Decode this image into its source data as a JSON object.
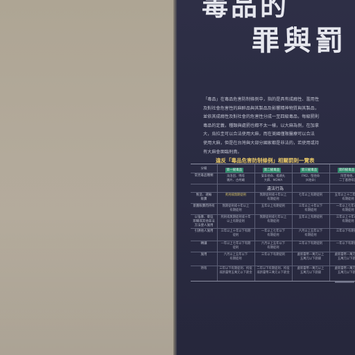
{
  "poster": {
    "title_line1": "毒品的",
    "title_line2": "罪與罰",
    "intro_text": "「毒品」在毒品危害防制條例中，指的是具有成癮性、濫用性\n及對社會危害性的麻醉品與其製品及影響精神物質與其製品，\n並依其成癮性及對社會的危害性分成一至四級毒品，每級罰則\n毒品的定義，種類與處罰也都不太一樣，以大麻為例，在加拿\n大，烏拉圭可以合法使用大麻，而在美國僅限醫療可以合法\n使用大麻，但是在台灣與大部分國家都是非法的，若使用或持\n有大麻會面臨刑責。",
    "table_title": "違反「毒品危害防制條例」相關罰則一覽表",
    "section_label": "違法行為",
    "grades": [
      "第一級毒品",
      "第二級毒品",
      "第三級毒品",
      "第四級毒品"
    ],
    "row_labels": [
      "分級",
      "常見毒品種類",
      "製造、運輸\n販賣",
      "意圖販賣而持有",
      "以強暴、脅迫\n欺瞞或其他非法\n方法使人施用",
      "引誘他人施用",
      "轉讓",
      "施用",
      "持有"
    ],
    "grade_examples": [
      "海洛因、嗎啡\n鴉片、古柯鹼",
      "安非他命、搖頭丸\n大麻、MDMA",
      "FM2、愷他命\n（K他命）",
      "阿普唑他、\n二丁基原啡因"
    ],
    "cells": [
      [
        "死刑或無期徒刑",
        "無期徒刑或十年以上\n有期徒刑",
        "七年以上有期徒刑",
        "五年以上十二年以下\n有期徒刑"
      ],
      [
        "無期徒刑或十年以上\n有期徒刑",
        "五年以上有期徒刑",
        "三年以上十年以下\n有期徒刑",
        "一年以上七年以下\n有期徒刑"
      ],
      [
        "死刑或無期徒刑或十年\n以上有期徒刑",
        "無期徒刑或七年以上\n有期徒刑",
        "五年以上有期徒刑",
        "三年以上十年以下\n有期徒刑"
      ],
      [
        "三年以上十年以下有期\n徒刑",
        "一年以上七年以下\n有期徒刑",
        "六月以上五年以下\n有期徒刑",
        "三年以下有期徒刑"
      ],
      [
        "一年以上七年以下有期\n徒刑",
        "六月以上五年以下\n有期徒刑",
        "三年以下有期徒刑",
        "一年以下有期徒刑"
      ],
      [
        "六月以上五年以下\n有期徒刑",
        "三年以下有期徒刑",
        "處新臺幣一萬元以上\n五萬元以下罰鍰",
        "處新臺幣一萬元以上\n五萬元以下罰鍰"
      ],
      [
        "三年以下有期徒刑、拘役\n或新臺幣五萬元以下罰金",
        "二年以下有期徒刑、拘役\n或新臺幣三萬元以下罰金",
        "處新臺幣一萬元以上\n五萬元以下罰鍰",
        "處新臺幣一萬元以上\n五萬元以下罰鍰"
      ]
    ]
  },
  "colors": {
    "wall": "#b3aa9b",
    "panel": "#2a2b42",
    "title": "#e6e7ee",
    "accent_gold": "#e9c968",
    "badge_green": "#2f8a6c"
  }
}
